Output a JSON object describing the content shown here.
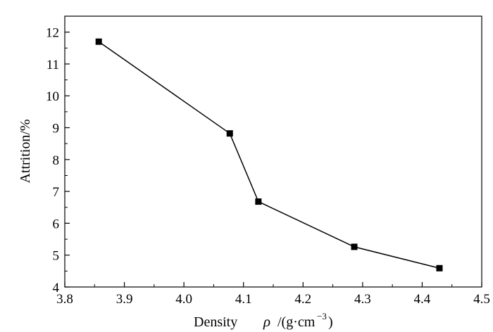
{
  "chart_data": {
    "type": "line",
    "xlabel": "Density",
    "xlabel_symbol": "ρ",
    "xlabel_unit_prefix": "/(g·cm",
    "xlabel_unit_exp": "−3",
    "xlabel_unit_suffix": ")",
    "ylabel": "Attrition/%",
    "xlim": [
      3.8,
      4.5
    ],
    "ylim": [
      4,
      12.5
    ],
    "xticks": [
      "3.8",
      "3.9",
      "4.0",
      "4.1",
      "4.2",
      "4.3",
      "4.4",
      "4.5"
    ],
    "yticks": [
      "4",
      "5",
      "6",
      "7",
      "8",
      "9",
      "10",
      "11",
      "12"
    ],
    "grid": false,
    "marker": "square",
    "series": [
      {
        "x": [
          3.857,
          4.077,
          4.125,
          4.286,
          4.429
        ],
        "y": [
          11.7,
          8.82,
          6.68,
          5.26,
          4.59
        ]
      }
    ]
  }
}
